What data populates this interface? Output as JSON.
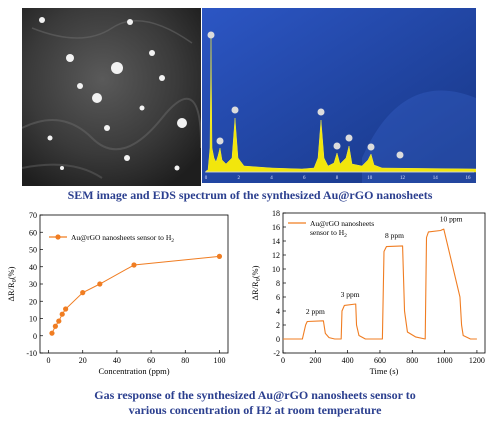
{
  "captions": {
    "top": "SEM image and EDS spectrum of the synthesized Au@rGO nanosheets",
    "bottom_line1": "Gas response of the synthesized Au@rGO nanosheets sensor to",
    "bottom_line2": "various concentration of H2 at room temperature"
  },
  "eds": {
    "x_ticks": [
      "0",
      "2",
      "4",
      "6",
      "8",
      "10",
      "12",
      "14",
      "16"
    ],
    "colors": {
      "background": "#1f3f9e",
      "spectrum": "#f2e60c"
    }
  },
  "chart_data": [
    {
      "type": "line",
      "title": "",
      "xlabel": "Concentration (ppm)",
      "ylabel": "ΔR/R0(%)",
      "xlim": [
        -5,
        105
      ],
      "ylim": [
        -10,
        70
      ],
      "x_ticks": [
        0,
        20,
        40,
        60,
        80,
        100
      ],
      "y_ticks": [
        -10,
        0,
        10,
        20,
        30,
        40,
        50,
        60,
        70
      ],
      "legend_position": "top-left",
      "series": [
        {
          "name": "Au@rGO nanosheets sensor to H2",
          "color": "#f07d22",
          "x": [
            2,
            4,
            6,
            8,
            10,
            20,
            30,
            50,
            100
          ],
          "y": [
            1.5,
            5.5,
            8.5,
            12.5,
            15.5,
            25,
            30,
            41,
            46
          ]
        }
      ]
    },
    {
      "type": "line",
      "title": "",
      "xlabel": "Time (s)",
      "ylabel": "ΔR/R0(%)",
      "xlim": [
        0,
        1250
      ],
      "ylim": [
        -2,
        18
      ],
      "x_ticks": [
        0,
        200,
        400,
        600,
        800,
        1000,
        1200
      ],
      "y_ticks": [
        -2,
        0,
        2,
        4,
        6,
        8,
        10,
        12,
        14,
        16,
        18
      ],
      "legend_position": "top-left",
      "annotations": [
        "2 ppm",
        "3 ppm",
        "8 ppm",
        "10 ppm"
      ],
      "series": [
        {
          "name": "Au@rGO nanosheets sensor to H2",
          "color": "#f07d22",
          "x": [
            0,
            120,
            140,
            150,
            250,
            262,
            285,
            320,
            360,
            365,
            380,
            450,
            455,
            470,
            510,
            615,
            625,
            640,
            740,
            752,
            770,
            820,
            880,
            888,
            900,
            975,
            985,
            995,
            1095,
            1105,
            1115,
            1160,
            1200
          ],
          "y": [
            0,
            0,
            2,
            2.5,
            2.6,
            0.8,
            0.2,
            0,
            0,
            4,
            4.8,
            5,
            2,
            0.5,
            0,
            0,
            12.5,
            13.2,
            13.3,
            4,
            1,
            0.3,
            0,
            14.5,
            15.3,
            15.5,
            15.6,
            15.7,
            6,
            2,
            0.5,
            0,
            0
          ]
        }
      ]
    }
  ]
}
